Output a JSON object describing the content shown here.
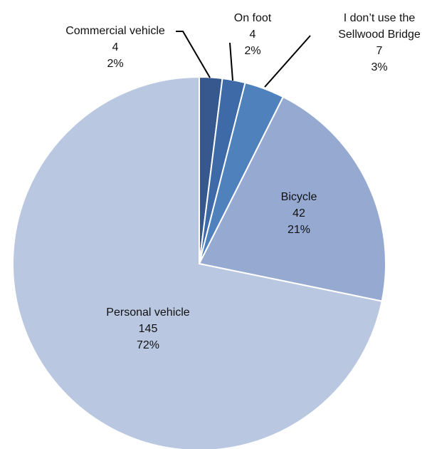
{
  "chart_data": {
    "type": "pie",
    "title": "",
    "slices": [
      {
        "label": "Commercial vehicle",
        "value": 4,
        "percent": "2%",
        "color": "#36588f"
      },
      {
        "label": "On foot",
        "value": 4,
        "percent": "2%",
        "color": "#3e6aa8"
      },
      {
        "label": "I don’t use the Sellwood Bridge",
        "value": 7,
        "percent": "3%",
        "color": "#4f81bd"
      },
      {
        "label": "Bicycle",
        "value": 42,
        "percent": "21%",
        "color": "#95a9d1"
      },
      {
        "label": "Personal vehicle",
        "value": 145,
        "percent": "72%",
        "color": "#b9c7e1"
      }
    ],
    "start_angle": "12 o'clock",
    "direction": "clockwise",
    "legend": "none"
  }
}
